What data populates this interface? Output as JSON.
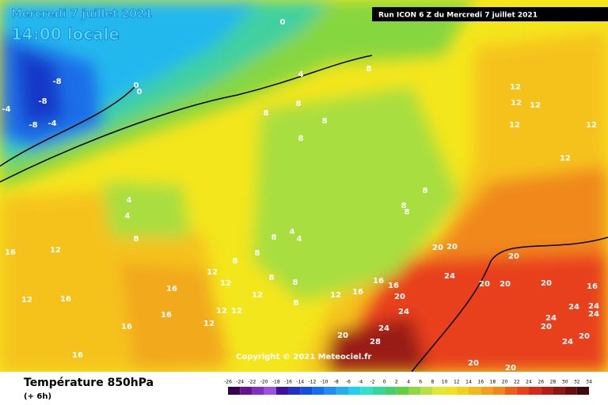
{
  "header": {
    "date": "Mercredi 7 juillet 2021",
    "time": "14:00 locale",
    "run": "Run ICON 6 Z du Mercredi 7 juillet 2021"
  },
  "map": {
    "copyright": "Copyright © 2021 Meteociel.fr",
    "contour_labels": [
      0,
      -8,
      -8,
      -8,
      -4,
      -4,
      0,
      0,
      4,
      8,
      8,
      8,
      8,
      8,
      12,
      12,
      12,
      12,
      12,
      12,
      4,
      4,
      8,
      16,
      12,
      8,
      8,
      8,
      8,
      4,
      4,
      8,
      8,
      12,
      12,
      8,
      8,
      12,
      8,
      12,
      12,
      12,
      12,
      16,
      16,
      16,
      20,
      20,
      20,
      20,
      24,
      20,
      20,
      20,
      16,
      24,
      24,
      20,
      28,
      24,
      24,
      24,
      24,
      20,
      20,
      24,
      20,
      20,
      16,
      16,
      12,
      16,
      16,
      16
    ]
  },
  "footer": {
    "title": "Température 850hPa",
    "subtitle": "(+ 6h)"
  },
  "legend": {
    "labels": [
      -26,
      -24,
      -22,
      -20,
      -18,
      -16,
      -14,
      -12,
      -10,
      -8,
      -6,
      -4,
      -2,
      0,
      2,
      4,
      6,
      8,
      10,
      12,
      14,
      16,
      18,
      20,
      22,
      24,
      26,
      28,
      30,
      32,
      34
    ]
  }
}
